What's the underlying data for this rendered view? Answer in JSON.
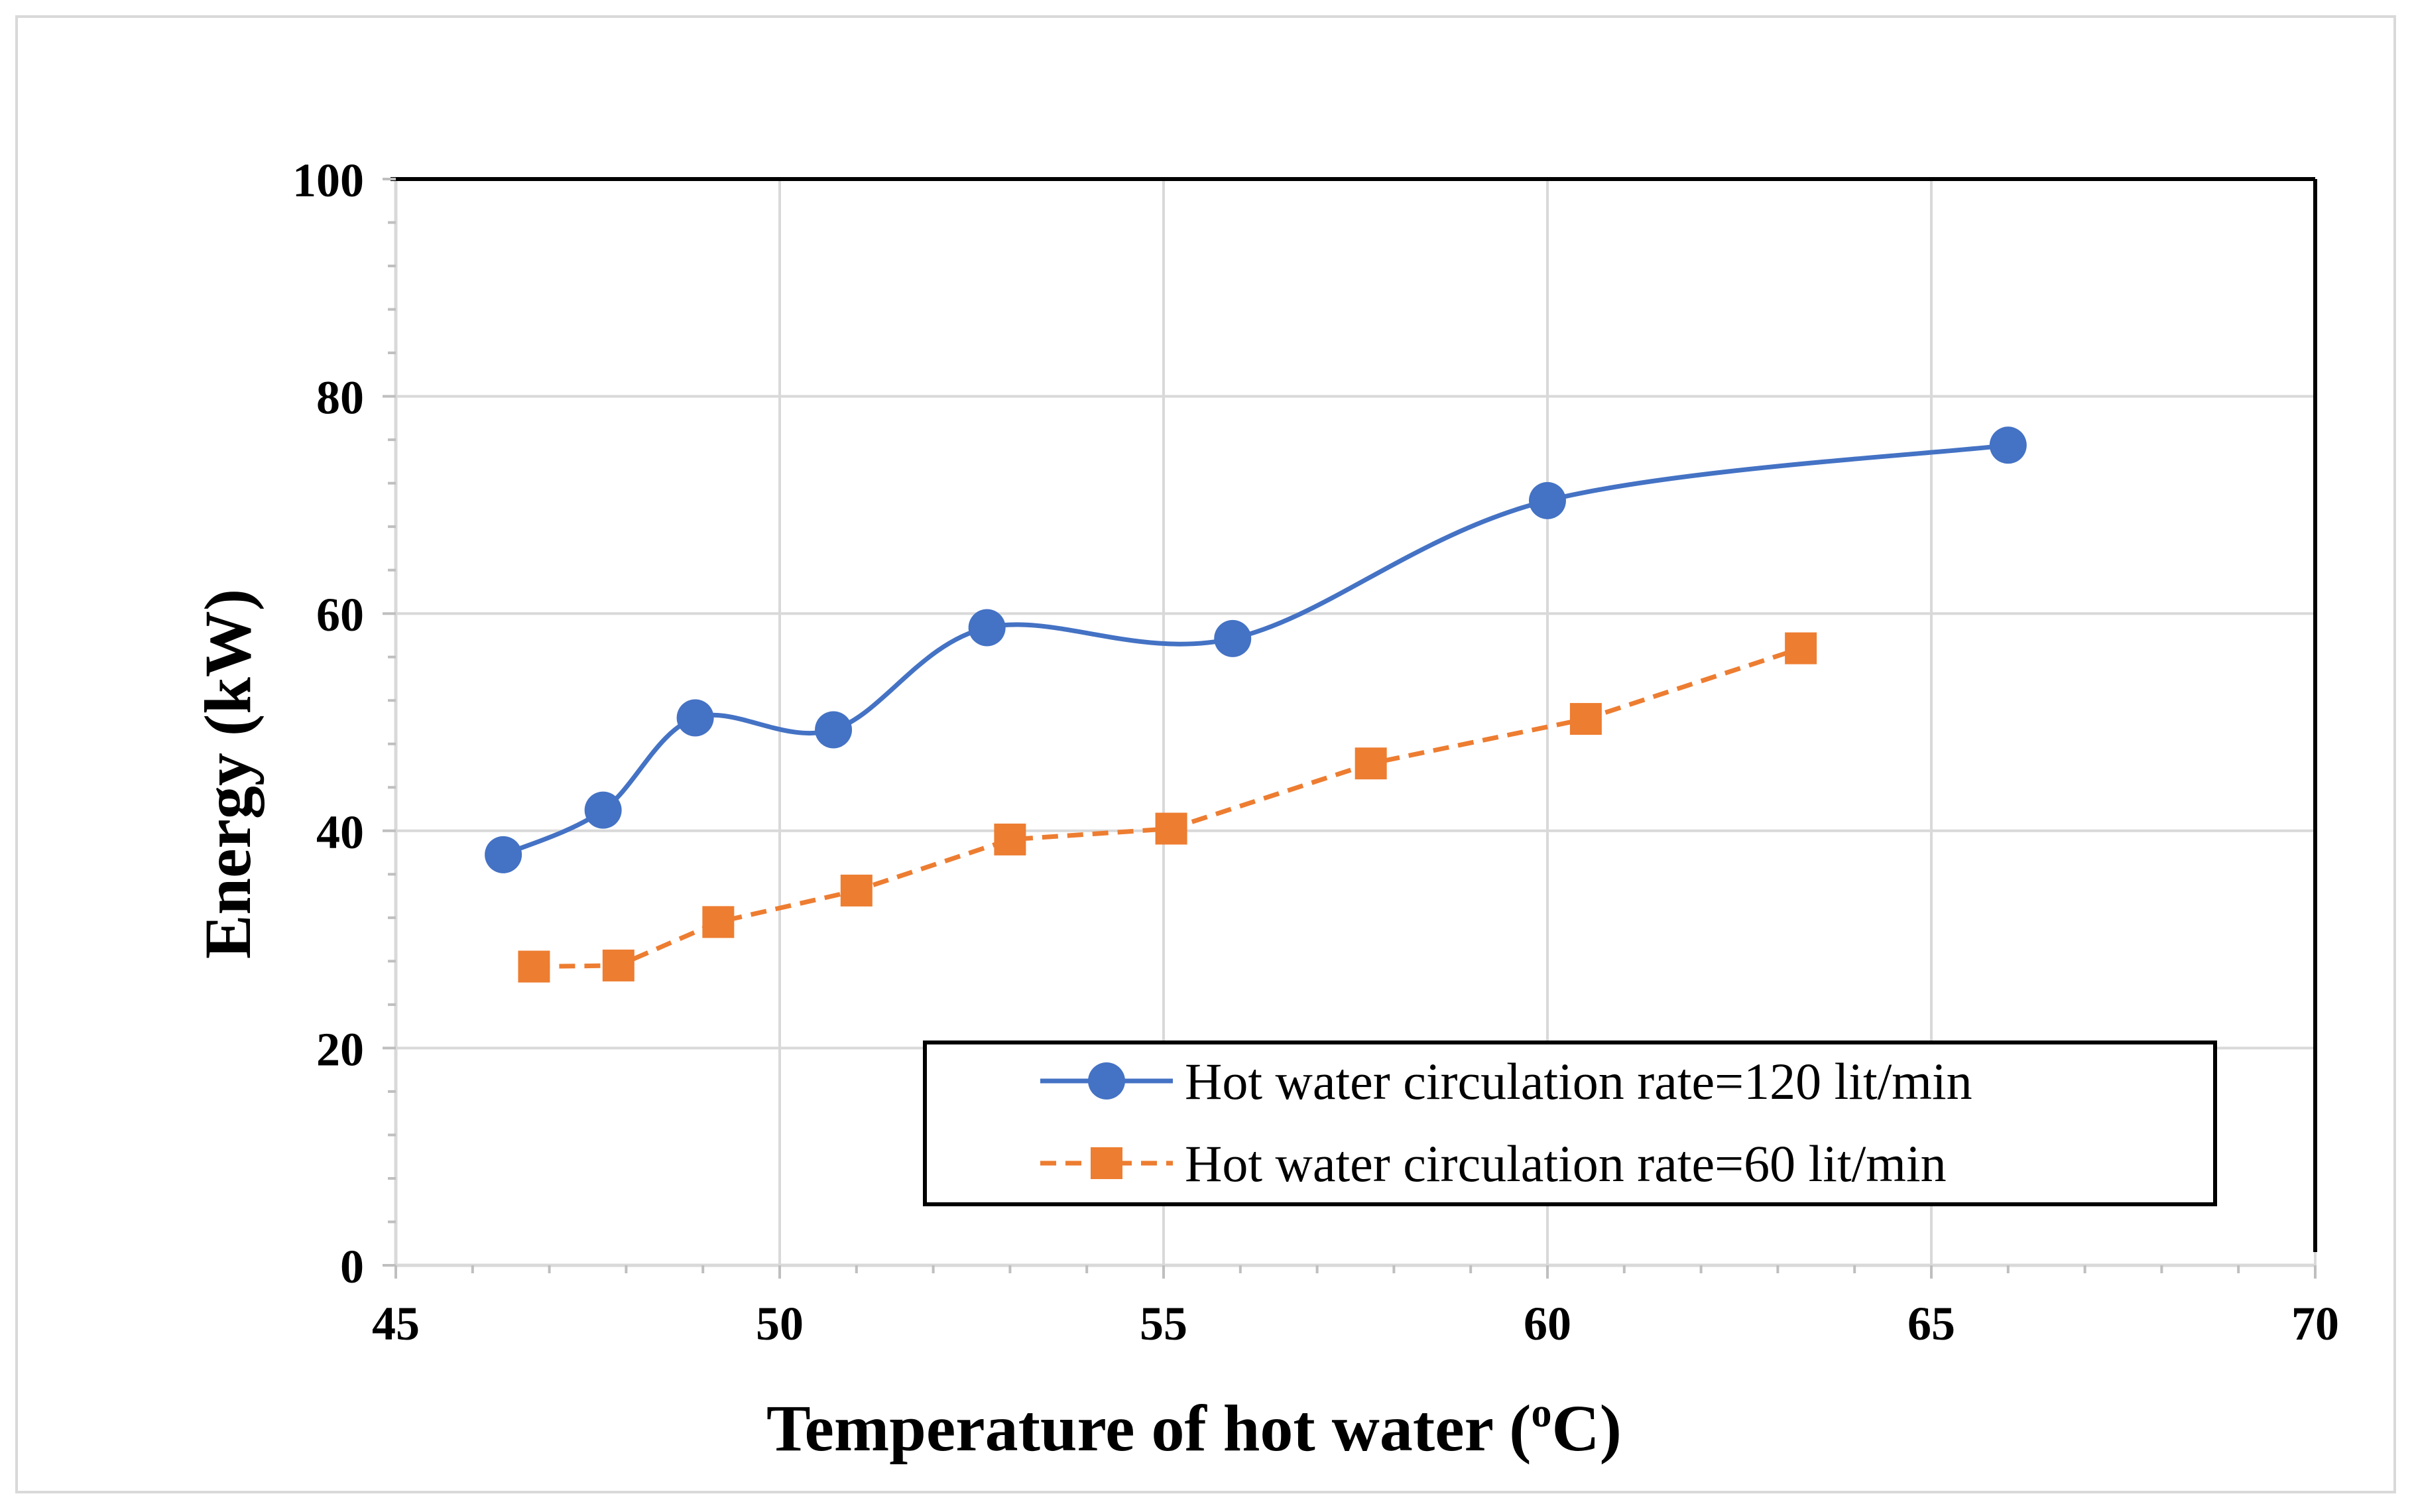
{
  "chart_data": {
    "type": "line",
    "title": "",
    "xlabel": "Temperature  of hot water (",
    "xlabel_sup": "o",
    "xlabel_end": "C)",
    "ylabel": "Energy (kW)",
    "xlim": [
      45,
      70
    ],
    "ylim": [
      0,
      100
    ],
    "xticks": [
      45,
      50,
      55,
      60,
      65,
      70
    ],
    "yticks": [
      0,
      20,
      40,
      60,
      80,
      100
    ],
    "xtick_labels": [
      "45",
      "50",
      "55",
      "60",
      "65",
      "70"
    ],
    "ytick_labels": [
      "0",
      "20",
      "40",
      "60",
      "80",
      "100"
    ],
    "grid": true,
    "legend_position": "bottom-right",
    "series": [
      {
        "name": "Hot water circulation rate=120 lit/min",
        "color": "#4472c4",
        "marker": "circle",
        "line": "solid-smooth",
        "x": [
          46.4,
          47.7,
          48.9,
          50.7,
          52.7,
          55.9,
          60.0,
          66.0
        ],
        "y": [
          37.8,
          41.9,
          50.4,
          49.3,
          58.7,
          57.7,
          70.4,
          75.5
        ]
      },
      {
        "name": "Hot water circulation rate=60 lit/min",
        "color": "#ed7d31",
        "marker": "square",
        "line": "dashed",
        "x": [
          46.8,
          47.9,
          49.2,
          51.0,
          53.0,
          55.1,
          57.7,
          60.5,
          63.3
        ],
        "y": [
          27.5,
          27.6,
          31.6,
          34.5,
          39.2,
          40.2,
          46.2,
          50.3,
          56.8
        ]
      }
    ]
  }
}
